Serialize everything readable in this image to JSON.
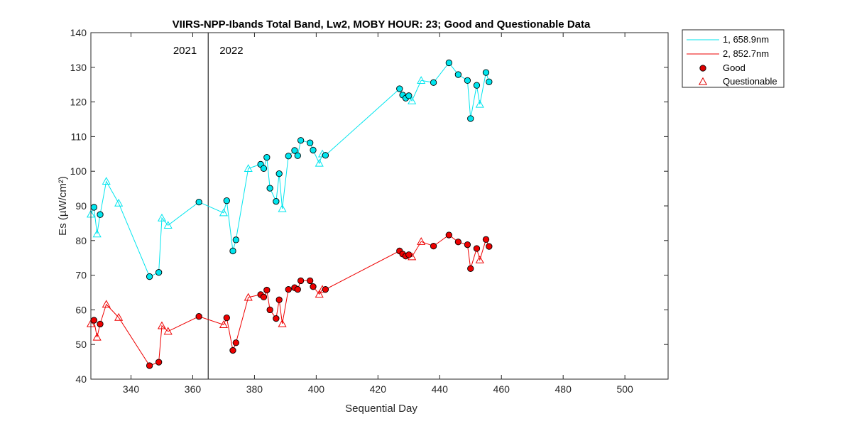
{
  "chart_data": {
    "type": "line",
    "title": "VIIRS-NPP-Ibands Total Band,  Lw2, MOBY HOUR: 23;  Good and Questionable Data",
    "xlabel": "Sequential Day",
    "ylabel": "Es (µW/cm²)",
    "xlim": [
      327,
      514
    ],
    "ylim": [
      40,
      140
    ],
    "xticks": [
      340,
      360,
      380,
      400,
      420,
      440,
      460,
      480,
      500
    ],
    "yticks": [
      40,
      50,
      60,
      70,
      80,
      90,
      100,
      110,
      120,
      130,
      140
    ],
    "grid": false,
    "legend_position": "outside-top-right",
    "year_divider": 365,
    "year_labels": [
      "2021",
      "2022"
    ],
    "legend": [
      "1, 658.9nm",
      "2, 852.7nm",
      "Good",
      "Questionable"
    ],
    "marker_legend_color": "#dd0000",
    "series": [
      {
        "name": "1, 658.9nm",
        "color": "#00e5ee",
        "points": [
          {
            "x": 327,
            "y": 87.6,
            "q": "Q"
          },
          {
            "x": 328,
            "y": 89.6,
            "q": "G"
          },
          {
            "x": 329,
            "y": 81.9,
            "q": "Q"
          },
          {
            "x": 330,
            "y": 87.5,
            "q": "G"
          },
          {
            "x": 332,
            "y": 97.1,
            "q": "Q"
          },
          {
            "x": 336,
            "y": 90.8,
            "q": "Q"
          },
          {
            "x": 346,
            "y": 69.6,
            "q": "G"
          },
          {
            "x": 349,
            "y": 70.8,
            "q": "G"
          },
          {
            "x": 350,
            "y": 86.5,
            "q": "Q"
          },
          {
            "x": 352,
            "y": 84.4,
            "q": "Q"
          },
          {
            "x": 362,
            "y": 91.1,
            "q": "G"
          },
          {
            "x": 370,
            "y": 88.0,
            "q": "Q"
          },
          {
            "x": 371,
            "y": 91.5,
            "q": "G"
          },
          {
            "x": 373,
            "y": 77.0,
            "q": "G"
          },
          {
            "x": 374,
            "y": 80.2,
            "q": "G"
          },
          {
            "x": 378,
            "y": 100.8,
            "q": "Q"
          },
          {
            "x": 382,
            "y": 102.0,
            "q": "G"
          },
          {
            "x": 383,
            "y": 100.8,
            "q": "G"
          },
          {
            "x": 384,
            "y": 104.0,
            "q": "G"
          },
          {
            "x": 385,
            "y": 95.1,
            "q": "G"
          },
          {
            "x": 387,
            "y": 91.3,
            "q": "G"
          },
          {
            "x": 388,
            "y": 99.3,
            "q": "G"
          },
          {
            "x": 389,
            "y": 89.2,
            "q": "Q"
          },
          {
            "x": 391,
            "y": 104.4,
            "q": "G"
          },
          {
            "x": 393,
            "y": 106.0,
            "q": "G"
          },
          {
            "x": 394,
            "y": 104.5,
            "q": "G"
          },
          {
            "x": 395,
            "y": 108.9,
            "q": "G"
          },
          {
            "x": 398,
            "y": 108.2,
            "q": "G"
          },
          {
            "x": 399,
            "y": 106.1,
            "q": "G"
          },
          {
            "x": 401,
            "y": 102.3,
            "q": "Q"
          },
          {
            "x": 402,
            "y": 105.0,
            "q": "Q"
          },
          {
            "x": 403,
            "y": 104.6,
            "q": "G"
          },
          {
            "x": 427,
            "y": 123.8,
            "q": "G"
          },
          {
            "x": 428,
            "y": 122.0,
            "q": "G"
          },
          {
            "x": 429,
            "y": 121.1,
            "q": "G"
          },
          {
            "x": 430,
            "y": 121.8,
            "q": "G"
          },
          {
            "x": 431,
            "y": 120.3,
            "q": "Q"
          },
          {
            "x": 434,
            "y": 126.2,
            "q": "Q"
          },
          {
            "x": 438,
            "y": 125.6,
            "q": "G"
          },
          {
            "x": 443,
            "y": 131.3,
            "q": "G"
          },
          {
            "x": 446,
            "y": 127.9,
            "q": "G"
          },
          {
            "x": 449,
            "y": 126.2,
            "q": "G"
          },
          {
            "x": 450,
            "y": 115.2,
            "q": "G"
          },
          {
            "x": 452,
            "y": 124.8,
            "q": "G"
          },
          {
            "x": 453,
            "y": 119.3,
            "q": "Q"
          },
          {
            "x": 455,
            "y": 128.5,
            "q": "G"
          },
          {
            "x": 456,
            "y": 125.8,
            "q": "G"
          }
        ]
      },
      {
        "name": "2, 852.7nm",
        "color": "#ee0000",
        "points": [
          {
            "x": 327,
            "y": 56.0,
            "q": "Q"
          },
          {
            "x": 328,
            "y": 57.0,
            "q": "G"
          },
          {
            "x": 329,
            "y": 52.1,
            "q": "Q"
          },
          {
            "x": 330,
            "y": 55.9,
            "q": "G"
          },
          {
            "x": 332,
            "y": 61.6,
            "q": "Q"
          },
          {
            "x": 336,
            "y": 57.8,
            "q": "Q"
          },
          {
            "x": 346,
            "y": 43.9,
            "q": "G"
          },
          {
            "x": 349,
            "y": 44.9,
            "q": "G"
          },
          {
            "x": 350,
            "y": 55.4,
            "q": "Q"
          },
          {
            "x": 352,
            "y": 53.8,
            "q": "Q"
          },
          {
            "x": 362,
            "y": 58.1,
            "q": "G"
          },
          {
            "x": 370,
            "y": 55.7,
            "q": "Q"
          },
          {
            "x": 371,
            "y": 57.7,
            "q": "G"
          },
          {
            "x": 373,
            "y": 48.3,
            "q": "G"
          },
          {
            "x": 374,
            "y": 50.5,
            "q": "G"
          },
          {
            "x": 378,
            "y": 63.6,
            "q": "Q"
          },
          {
            "x": 382,
            "y": 64.4,
            "q": "G"
          },
          {
            "x": 383,
            "y": 63.7,
            "q": "G"
          },
          {
            "x": 384,
            "y": 65.7,
            "q": "G"
          },
          {
            "x": 385,
            "y": 60.0,
            "q": "G"
          },
          {
            "x": 387,
            "y": 57.5,
            "q": "G"
          },
          {
            "x": 388,
            "y": 62.9,
            "q": "G"
          },
          {
            "x": 389,
            "y": 56.0,
            "q": "Q"
          },
          {
            "x": 391,
            "y": 65.9,
            "q": "G"
          },
          {
            "x": 393,
            "y": 66.4,
            "q": "G"
          },
          {
            "x": 394,
            "y": 65.9,
            "q": "G"
          },
          {
            "x": 395,
            "y": 68.4,
            "q": "G"
          },
          {
            "x": 398,
            "y": 68.4,
            "q": "G"
          },
          {
            "x": 399,
            "y": 66.7,
            "q": "G"
          },
          {
            "x": 401,
            "y": 64.5,
            "q": "Q"
          },
          {
            "x": 402,
            "y": 65.9,
            "q": "Q"
          },
          {
            "x": 403,
            "y": 65.9,
            "q": "G"
          },
          {
            "x": 427,
            "y": 77.0,
            "q": "G"
          },
          {
            "x": 428,
            "y": 76.1,
            "q": "G"
          },
          {
            "x": 429,
            "y": 75.5,
            "q": "G"
          },
          {
            "x": 430,
            "y": 75.9,
            "q": "G"
          },
          {
            "x": 431,
            "y": 75.3,
            "q": "Q"
          },
          {
            "x": 434,
            "y": 79.7,
            "q": "Q"
          },
          {
            "x": 438,
            "y": 78.4,
            "q": "G"
          },
          {
            "x": 443,
            "y": 81.6,
            "q": "G"
          },
          {
            "x": 446,
            "y": 79.6,
            "q": "G"
          },
          {
            "x": 449,
            "y": 78.8,
            "q": "G"
          },
          {
            "x": 450,
            "y": 71.9,
            "q": "G"
          },
          {
            "x": 452,
            "y": 77.7,
            "q": "G"
          },
          {
            "x": 453,
            "y": 74.4,
            "q": "Q"
          },
          {
            "x": 455,
            "y": 80.3,
            "q": "G"
          },
          {
            "x": 456,
            "y": 78.3,
            "q": "G"
          }
        ]
      }
    ]
  }
}
